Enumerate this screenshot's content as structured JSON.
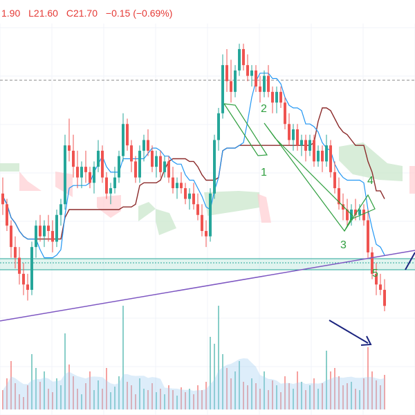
{
  "header": {
    "open_fragment": "1.90",
    "low": "L21.60",
    "close": "C21.70",
    "change": "−0.15 (−0.69%)",
    "color": "#e53935"
  },
  "chart_data": {
    "type": "candlestick",
    "price_range": [
      19.6,
      24.9
    ],
    "wave_labels": [
      "1",
      "2",
      "3",
      "4",
      "5"
    ],
    "colors": {
      "up": "#26a69a",
      "down": "#ef5350",
      "tenkan": "#2196f3",
      "kijun": "#8b2a2a",
      "wave_lines": "#2e9e3e",
      "trendline": "#7e57c2",
      "support_zone": "#a6dfd0",
      "arrow": "#1a237e",
      "cloud_green": "#c8e6c9",
      "cloud_red": "#ffcdd2",
      "volume_ma": "#9ecbf0"
    },
    "candles": [
      [
        21.8,
        22.1,
        21.4,
        21.6
      ],
      [
        21.6,
        21.7,
        21.1,
        21.2
      ],
      [
        21.2,
        21.3,
        20.6,
        20.8
      ],
      [
        20.8,
        21.0,
        20.4,
        20.6
      ],
      [
        20.6,
        20.8,
        20.1,
        20.3
      ],
      [
        20.3,
        20.5,
        19.9,
        20.1
      ],
      [
        20.1,
        20.3,
        19.8,
        20.0
      ],
      [
        20.0,
        20.9,
        19.9,
        20.8
      ],
      [
        20.8,
        21.3,
        20.6,
        21.2
      ],
      [
        21.2,
        21.4,
        20.9,
        21.0
      ],
      [
        21.0,
        21.3,
        20.8,
        21.2
      ],
      [
        21.2,
        21.4,
        20.9,
        21.1
      ],
      [
        21.1,
        21.3,
        20.7,
        20.9
      ],
      [
        20.9,
        21.5,
        20.8,
        21.4
      ],
      [
        21.4,
        21.7,
        21.2,
        21.6
      ],
      [
        21.6,
        22.9,
        21.5,
        22.7
      ],
      [
        22.7,
        23.2,
        22.4,
        22.6
      ],
      [
        22.6,
        22.9,
        22.1,
        22.3
      ],
      [
        22.3,
        22.6,
        21.9,
        22.1
      ],
      [
        22.1,
        22.4,
        21.9,
        22.3
      ],
      [
        22.3,
        22.6,
        22.0,
        22.2
      ],
      [
        22.2,
        22.3,
        21.9,
        22.0
      ],
      [
        22.0,
        22.4,
        21.8,
        22.3
      ],
      [
        22.3,
        22.8,
        22.2,
        22.6
      ],
      [
        22.6,
        22.7,
        22.0,
        22.1
      ],
      [
        22.1,
        22.2,
        21.7,
        21.8
      ],
      [
        21.8,
        22.0,
        21.6,
        21.9
      ],
      [
        21.9,
        22.3,
        21.8,
        22.1
      ],
      [
        22.1,
        22.6,
        22.0,
        22.5
      ],
      [
        22.5,
        23.3,
        22.4,
        23.1
      ],
      [
        23.1,
        23.2,
        22.6,
        22.7
      ],
      [
        22.7,
        22.8,
        22.2,
        22.4
      ],
      [
        22.4,
        22.5,
        22.0,
        22.1
      ],
      [
        22.1,
        22.7,
        22.0,
        22.6
      ],
      [
        22.6,
        22.9,
        22.4,
        22.8
      ],
      [
        22.8,
        23.0,
        22.5,
        22.6
      ],
      [
        22.6,
        22.7,
        22.2,
        22.3
      ],
      [
        22.3,
        22.6,
        22.1,
        22.5
      ],
      [
        22.5,
        22.6,
        22.1,
        22.2
      ],
      [
        22.2,
        22.5,
        22.1,
        22.4
      ],
      [
        22.4,
        22.5,
        22.0,
        22.1
      ],
      [
        22.1,
        22.3,
        21.8,
        21.9
      ],
      [
        21.9,
        22.1,
        21.7,
        22.0
      ],
      [
        22.0,
        22.2,
        21.8,
        21.9
      ],
      [
        21.9,
        22.0,
        21.6,
        21.7
      ],
      [
        21.7,
        21.9,
        21.5,
        21.8
      ],
      [
        21.8,
        22.0,
        21.5,
        21.6
      ],
      [
        21.6,
        21.8,
        21.3,
        21.4
      ],
      [
        21.4,
        21.6,
        21.0,
        21.1
      ],
      [
        21.1,
        21.3,
        20.8,
        21.0
      ],
      [
        21.0,
        21.9,
        20.9,
        21.8
      ],
      [
        21.8,
        22.9,
        21.7,
        22.8
      ],
      [
        22.8,
        23.4,
        22.6,
        23.3
      ],
      [
        23.3,
        24.4,
        23.2,
        24.2
      ],
      [
        24.2,
        24.5,
        23.7,
        23.9
      ],
      [
        23.9,
        24.3,
        23.5,
        23.7
      ],
      [
        23.7,
        24.2,
        23.6,
        24.1
      ],
      [
        24.1,
        24.6,
        24.0,
        24.5
      ],
      [
        24.5,
        24.6,
        24.1,
        24.2
      ],
      [
        24.2,
        24.4,
        23.9,
        24.0
      ],
      [
        24.0,
        24.2,
        23.8,
        24.1
      ],
      [
        24.1,
        24.2,
        23.7,
        23.8
      ],
      [
        23.8,
        24.0,
        23.5,
        23.7
      ],
      [
        23.7,
        24.1,
        23.6,
        24.0
      ],
      [
        24.0,
        24.2,
        23.6,
        23.7
      ],
      [
        23.7,
        23.8,
        23.3,
        23.5
      ],
      [
        23.5,
        23.8,
        23.3,
        23.7
      ],
      [
        23.7,
        23.8,
        23.4,
        23.5
      ],
      [
        23.5,
        23.6,
        23.0,
        23.1
      ],
      [
        23.1,
        23.3,
        22.7,
        22.8
      ],
      [
        22.8,
        23.1,
        22.6,
        23.0
      ],
      [
        23.0,
        23.1,
        22.6,
        22.7
      ],
      [
        22.7,
        22.9,
        22.5,
        22.8
      ],
      [
        22.8,
        22.9,
        22.4,
        22.6
      ],
      [
        22.6,
        22.9,
        22.5,
        22.8
      ],
      [
        22.8,
        22.9,
        22.3,
        22.4
      ],
      [
        22.4,
        22.7,
        22.3,
        22.6
      ],
      [
        22.6,
        22.7,
        22.2,
        22.4
      ],
      [
        22.4,
        22.9,
        22.3,
        22.7
      ],
      [
        22.7,
        22.8,
        22.1,
        22.2
      ],
      [
        22.2,
        22.4,
        21.8,
        21.9
      ],
      [
        21.9,
        22.1,
        21.5,
        21.6
      ],
      [
        21.6,
        21.8,
        21.3,
        21.5
      ],
      [
        21.5,
        21.7,
        21.2,
        21.3
      ],
      [
        21.3,
        21.6,
        21.2,
        21.5
      ],
      [
        21.5,
        21.7,
        21.3,
        21.4
      ],
      [
        21.4,
        21.6,
        21.3,
        21.5
      ],
      [
        21.5,
        21.6,
        21.2,
        21.3
      ],
      [
        21.3,
        21.5,
        20.6,
        20.7
      ],
      [
        20.7,
        20.8,
        20.2,
        20.3
      ],
      [
        20.3,
        20.5,
        19.9,
        20.1
      ],
      [
        20.1,
        20.3,
        19.9,
        20.0
      ],
      [
        20.0,
        20.2,
        19.6,
        19.7
      ]
    ],
    "volumes": [
      28,
      45,
      70,
      38,
      22,
      18,
      35,
      80,
      60,
      40,
      55,
      30,
      25,
      45,
      35,
      110,
      65,
      48,
      30,
      22,
      38,
      55,
      28,
      42,
      30,
      60,
      25,
      33,
      48,
      150,
      40,
      35,
      22,
      45,
      30,
      28,
      38,
      25,
      30,
      22,
      35,
      28,
      20,
      32,
      25,
      30,
      22,
      35,
      28,
      40,
      105,
      95,
      150,
      80,
      60,
      45,
      55,
      70,
      40,
      35,
      45,
      38,
      30,
      55,
      28,
      42,
      35,
      25,
      48,
      38,
      30,
      55,
      40,
      28,
      35,
      45,
      30,
      38,
      85,
      55,
      60,
      48,
      35,
      38,
      40,
      30,
      28,
      45,
      90,
      55,
      42,
      35,
      50
    ]
  }
}
